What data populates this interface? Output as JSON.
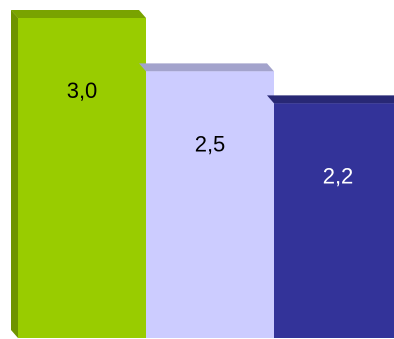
{
  "chart_data": {
    "type": "bar",
    "style": "3d",
    "categories": [
      "",
      "",
      ""
    ],
    "values": [
      3.0,
      2.5,
      2.2
    ],
    "value_labels": [
      "3,0",
      "2,5",
      "2,2"
    ],
    "colors": {
      "front": [
        "#99cc00",
        "#ccccff",
        "#333399"
      ],
      "top": [
        "#79a300",
        "#a3a3cc",
        "#282875"
      ],
      "side": [
        "#6f9400",
        "#9a9ac4",
        "#22226a"
      ],
      "label": [
        "#000000",
        "#000000",
        "#ffffff"
      ]
    },
    "ylim": [
      0,
      3.0
    ],
    "grid": false,
    "legend": false,
    "title": "",
    "xlabel": "",
    "ylabel": ""
  }
}
